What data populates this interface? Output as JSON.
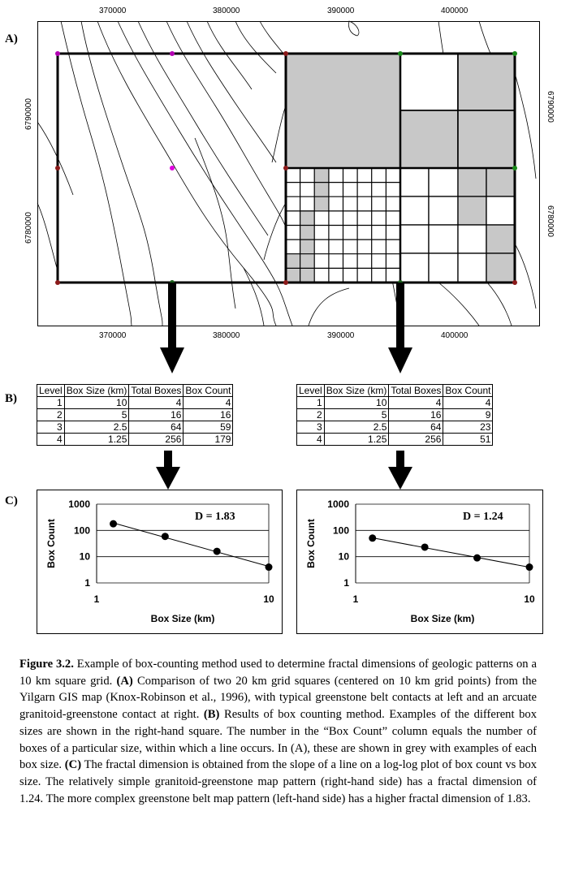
{
  "panels": {
    "a": "A)",
    "b": "B)",
    "c": "C)"
  },
  "map": {
    "x_ticks_top": [
      "370000",
      "380000",
      "390000",
      "400000"
    ],
    "x_ticks_bottom": [
      "370000",
      "380000",
      "390000",
      "400000"
    ],
    "y_ticks_left": [
      "6790000",
      "6780000"
    ],
    "y_ticks_right": [
      "6790000",
      "6780000"
    ]
  },
  "tables": {
    "headers": [
      "Level",
      "Box Size (km)",
      "Total Boxes",
      "Box Count"
    ],
    "left": [
      [
        "1",
        "10",
        "4",
        "4"
      ],
      [
        "2",
        "5",
        "16",
        "16"
      ],
      [
        "3",
        "2.5",
        "64",
        "59"
      ],
      [
        "4",
        "1.25",
        "256",
        "179"
      ]
    ],
    "right": [
      [
        "1",
        "10",
        "4",
        "4"
      ],
      [
        "2",
        "5",
        "16",
        "9"
      ],
      [
        "3",
        "2.5",
        "64",
        "23"
      ],
      [
        "4",
        "1.25",
        "256",
        "51"
      ]
    ]
  },
  "chart_data": [
    {
      "type": "scatter",
      "title": "D = 1.83",
      "xlabel": "Box Size (km)",
      "ylabel": "Box Count",
      "x_scale": "log",
      "y_scale": "log",
      "xlim": [
        1,
        10
      ],
      "ylim": [
        1,
        1000
      ],
      "x_ticks": [
        "1",
        "10"
      ],
      "y_ticks": [
        "1",
        "10",
        "100",
        "1000"
      ],
      "x": [
        1.25,
        2.5,
        5,
        10
      ],
      "y": [
        179,
        59,
        16,
        4
      ],
      "fit_line": true
    },
    {
      "type": "scatter",
      "title": "D = 1.24",
      "xlabel": "Box Size (km)",
      "ylabel": "Box Count",
      "x_scale": "log",
      "y_scale": "log",
      "xlim": [
        1,
        10
      ],
      "ylim": [
        1,
        1000
      ],
      "x_ticks": [
        "1",
        "10"
      ],
      "y_ticks": [
        "1",
        "10",
        "100",
        "1000"
      ],
      "x": [
        1.25,
        2.5,
        5,
        10
      ],
      "y": [
        51,
        23,
        9,
        4
      ],
      "fit_line": true
    }
  ],
  "caption": {
    "label": "Figure 3.2.",
    "p1": " Example of box-counting method used to determine fractal dimensions of geologic patterns on a 10 km square grid. ",
    "a": "(A)",
    "p2": " Comparison of two 20 km grid squares (centered on 10 km grid points) from the Yilgarn GIS map (Knox-Robinson et al., 1996), with typical greenstone belt contacts at left and an arcuate granitoid-greenstone contact at right. ",
    "b": "(B)",
    "p3": " Results of box counting method. Examples of the different box sizes are shown in the right-hand square. The number in the “Box Count” column equals the number of boxes of a particular size, within which a line occurs. In (A), these are shown in grey with examples of each box size. ",
    "c": "(C)",
    "p4": " The fractal dimension is obtained from the slope of a line on a log-log plot of box count vs box size. The relatively simple granitoid-greenstone map pattern (right-hand side) has a fractal dimension of 1.24. The more complex greenstone belt map pattern (left-hand side) has a higher fractal dimension of 1.83."
  }
}
